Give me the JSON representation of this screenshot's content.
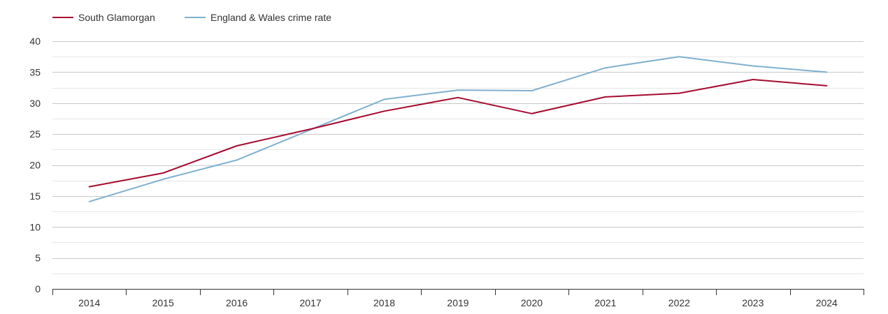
{
  "chart_data": {
    "type": "line",
    "title": "",
    "xlabel": "",
    "ylabel": "",
    "categories": [
      "2014",
      "2015",
      "2016",
      "2017",
      "2018",
      "2019",
      "2020",
      "2021",
      "2022",
      "2023",
      "2024"
    ],
    "ylim": [
      0,
      40
    ],
    "yticks": [
      0,
      5,
      10,
      15,
      20,
      25,
      30,
      35,
      40
    ],
    "grid": true,
    "legend_position": "top-left",
    "series": [
      {
        "name": "South Glamorgan",
        "color": "#a50a2e",
        "values": [
          16.5,
          18.7,
          23.1,
          25.8,
          28.7,
          30.9,
          28.3,
          31.0,
          31.6,
          33.8,
          32.8
        ]
      },
      {
        "name": "England & Wales crime rate",
        "color": "#7fb0cf",
        "values": [
          14.1,
          17.7,
          20.8,
          25.7,
          30.6,
          32.1,
          32.0,
          35.7,
          37.5,
          36.0,
          35.0
        ]
      }
    ]
  }
}
